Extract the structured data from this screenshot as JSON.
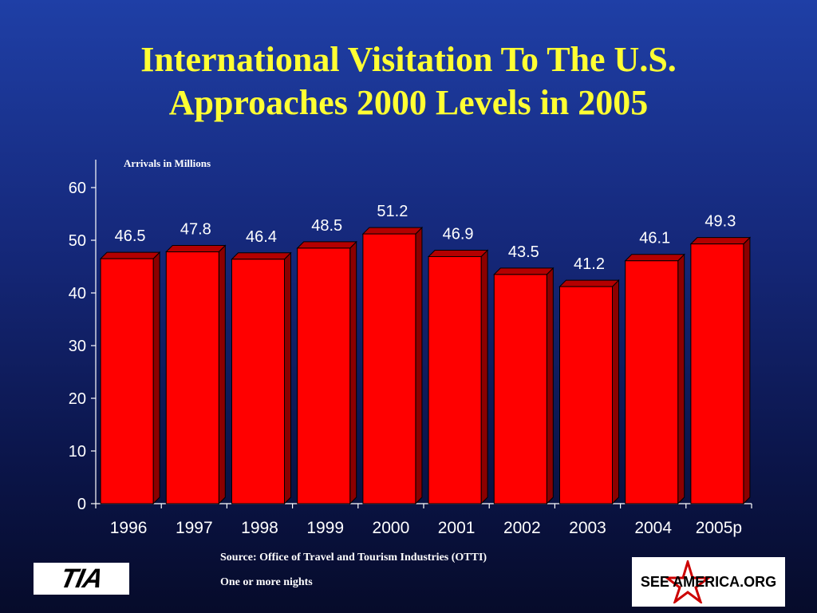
{
  "title_line1": "International Visitation To The U.S.",
  "title_line2": "Approaches 2000 Levels in 2005",
  "source": "Source: Office  of Travel and Tourism Industries (OTTI)",
  "note": "One or more nights",
  "logos": {
    "tia": "TIA",
    "see_america": "SEE AMERICA.ORG"
  },
  "colors": {
    "background": "#15287a",
    "title": "#ffff33",
    "bar_front": "#ff0000",
    "bar_top": "#b40000",
    "bar_side": "#8c0000"
  },
  "chart_data": {
    "type": "bar",
    "ylabel": "Arrivals in Millions",
    "xlabel": "",
    "categories": [
      "1996",
      "1997",
      "1998",
      "1999",
      "2000",
      "2001",
      "2002",
      "2003",
      "2004",
      "2005p"
    ],
    "values": [
      46.5,
      47.8,
      46.4,
      48.5,
      51.2,
      46.9,
      43.5,
      41.2,
      46.1,
      49.3
    ],
    "value_labels": [
      "46.5",
      "47.8",
      "46.4",
      "48.5",
      "51.2",
      "46.9",
      "43.5",
      "41.2",
      "46.1",
      "49.3"
    ],
    "ylim": [
      0,
      60
    ],
    "yticks": [
      "0",
      "10",
      "20",
      "30",
      "40",
      "50",
      "60"
    ],
    "grid": false,
    "legend": "none",
    "style": "3d-bar"
  }
}
